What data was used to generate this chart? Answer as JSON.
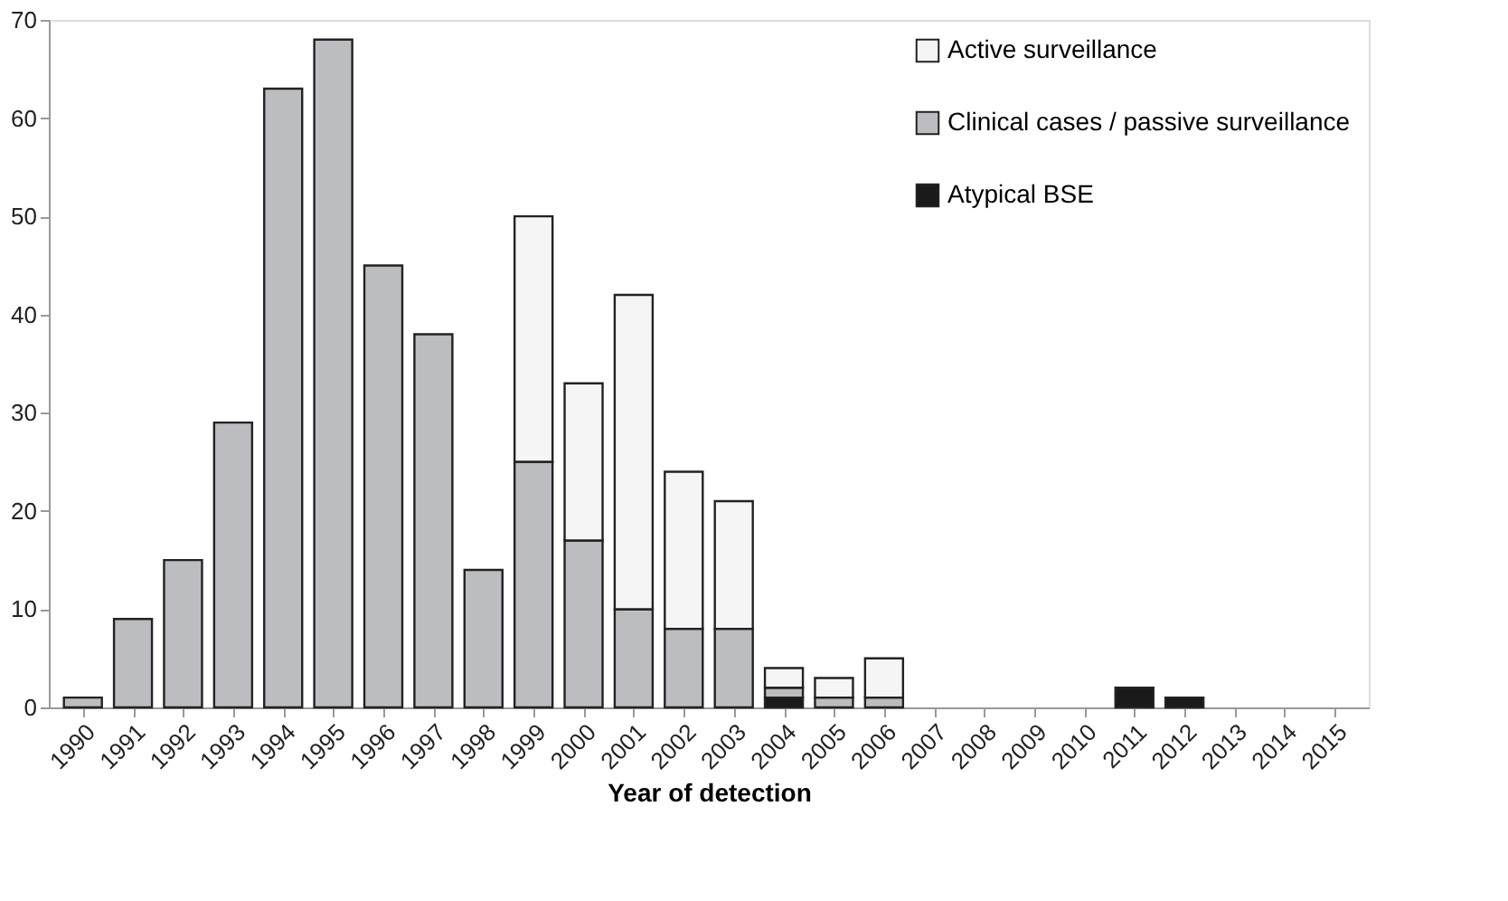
{
  "chart_data": {
    "type": "bar",
    "stacked": true,
    "xlabel": "Year of detection",
    "categories": [
      "1990",
      "1991",
      "1992",
      "1993",
      "1994",
      "1995",
      "1996",
      "1997",
      "1998",
      "1999",
      "2000",
      "2001",
      "2002",
      "2003",
      "2004",
      "2005",
      "2006",
      "2007",
      "2008",
      "2009",
      "2010",
      "2011",
      "2012",
      "2013",
      "2014",
      "2015"
    ],
    "series": [
      {
        "name": "Atypical BSE",
        "color": "#1a1a1a",
        "values": [
          null,
          null,
          null,
          null,
          null,
          null,
          null,
          null,
          null,
          null,
          null,
          null,
          null,
          null,
          1,
          null,
          null,
          null,
          null,
          null,
          null,
          2,
          1,
          null,
          null,
          null
        ]
      },
      {
        "name": "Clinical cases / passive surveillance",
        "color": "#bcbdc0",
        "values": [
          1,
          9,
          15,
          29,
          63,
          68,
          45,
          38,
          14,
          25,
          17,
          10,
          8,
          8,
          1,
          1,
          1,
          null,
          null,
          null,
          null,
          null,
          null,
          null,
          null,
          null
        ]
      },
      {
        "name": "Active surveillance",
        "color": "#f4f5f4",
        "values": [
          null,
          null,
          null,
          null,
          null,
          null,
          null,
          null,
          null,
          25,
          16,
          32,
          16,
          13,
          2,
          2,
          4,
          null,
          null,
          null,
          null,
          null,
          null,
          null,
          null,
          null
        ]
      }
    ],
    "ylim": [
      0,
      70
    ],
    "yticks": [
      0,
      10,
      20,
      30,
      40,
      50,
      60,
      70
    ],
    "grid": false,
    "legend": "top right"
  }
}
